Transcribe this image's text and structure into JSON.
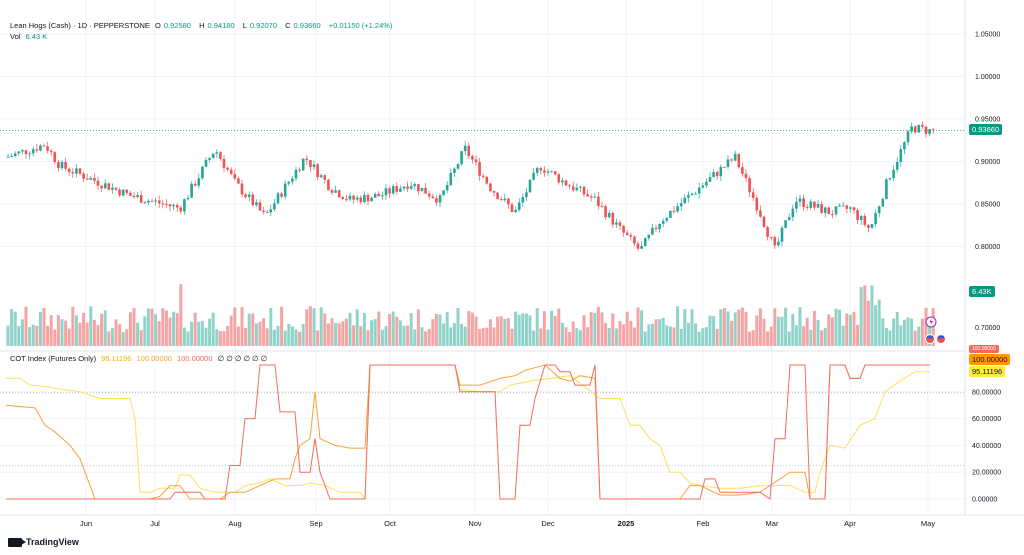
{
  "header": {
    "symbol": "Lean Hogs (Cash) · 1D · PEPPERSTONE",
    "o_label": "O",
    "o_value": "0.92580",
    "h_label": "H",
    "h_value": "0.94180",
    "l_label": "L",
    "l_value": "0.92070",
    "c_label": "C",
    "c_value": "0.93660",
    "change": "+0.01150 (+1.24%)"
  },
  "volume": {
    "label": "Vol",
    "value": "6.43 K"
  },
  "cot": {
    "title": "COT Index (Futures Only)",
    "v1": "95.11196",
    "v2": "100.00000",
    "v3": "100.00000",
    "extras": "∅ ∅ ∅ ∅ ∅ ∅"
  },
  "price_axis": {
    "ticks": [
      "1.05000",
      "1.00000",
      "0.95000",
      "0.90000",
      "0.85000",
      "0.80000",
      "0.70000"
    ],
    "ticks_values": [
      1.05,
      1.0,
      0.95,
      0.9,
      0.85,
      0.8,
      0.7
    ],
    "last_price": "0.93660",
    "volume_badge": "6.43K"
  },
  "cot_axis": {
    "ticks": [
      "80.00000",
      "60.00000",
      "40.00000",
      "20.00000",
      "0.00000"
    ],
    "badge_top": "100.00000",
    "badge_mid": "100.00000",
    "badge_low": "95.11196"
  },
  "time_axis": [
    "Jun",
    "Jul",
    "Aug",
    "Sep",
    "Oct",
    "Nov",
    "Dec",
    "2025",
    "Feb",
    "Mar",
    "Apr",
    "May"
  ],
  "branding": {
    "name": "TradingView"
  },
  "colors": {
    "up": "#26a69a",
    "down": "#ef5350",
    "vol_up": "#8fd3cb",
    "vol_down": "#f4a5a3",
    "cot_red": "#f26c5b",
    "cot_orange": "#f7a23a",
    "cot_yellow": "#fde05a",
    "last_badge": "#089981",
    "cot_badge_orange": "#ff9800",
    "cot_badge_yellow": "#ffeb3b"
  },
  "chart_data": {
    "type": "candlestick",
    "price": {
      "ylim": [
        0.78,
        1.06
      ],
      "anchors": [
        {
          "d": "Jun",
          "v": 0.905
        },
        {
          "d": "Jul",
          "v": 0.87
        },
        {
          "d": "Aug",
          "v": 0.9
        },
        {
          "d": "Sep",
          "v": 0.89
        },
        {
          "d": "Oct",
          "v": 0.865
        },
        {
          "d": "Nov",
          "v": 0.9
        },
        {
          "d": "Dec",
          "v": 0.88
        },
        {
          "d": "2025",
          "v": 0.8
        },
        {
          "d": "Feb",
          "v": 0.89
        },
        {
          "d": "Mar",
          "v": 0.83
        },
        {
          "d": "Apr",
          "v": 0.85
        },
        {
          "d": "May",
          "v": 0.9366
        }
      ]
    },
    "cot_index": {
      "ylim": [
        0,
        100
      ],
      "series": [
        {
          "name": "",
          "color": "red"
        },
        {
          "name": "",
          "color": "orange"
        },
        {
          "name": "",
          "color": "yellow"
        }
      ],
      "last_values": [
        100.0,
        100.0,
        95.11196
      ]
    }
  }
}
